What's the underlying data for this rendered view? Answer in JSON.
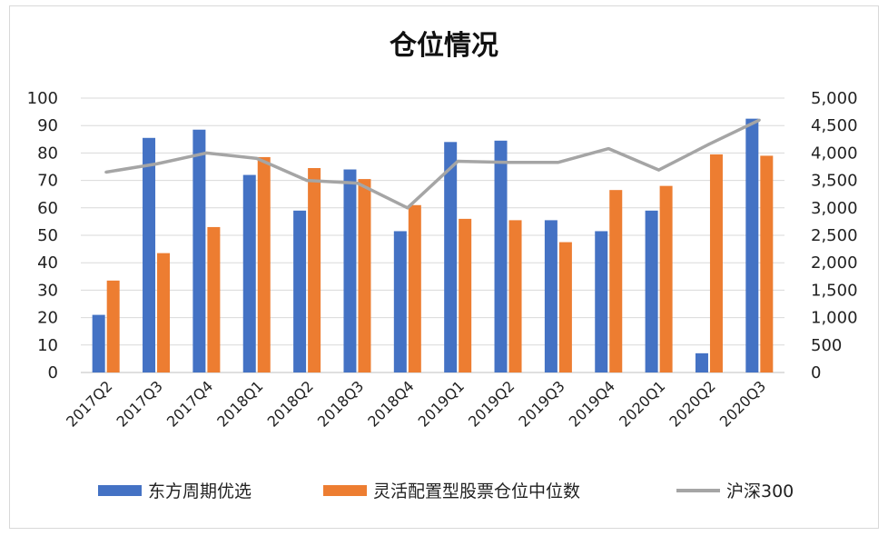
{
  "chart_data": {
    "type": "bar",
    "title": "仓位情况",
    "categories": [
      "2017Q2",
      "2017Q3",
      "2017Q4",
      "2018Q1",
      "2018Q2",
      "2018Q3",
      "2018Q4",
      "2019Q1",
      "2019Q2",
      "2019Q3",
      "2019Q4",
      "2020Q1",
      "2020Q2",
      "2020Q3"
    ],
    "series": [
      {
        "name": "东方周期优选",
        "kind": "bar",
        "axis": "left",
        "color": "#4472C4",
        "values": [
          21,
          85.5,
          88.5,
          72,
          59,
          74,
          51.5,
          84,
          84.5,
          55.5,
          51.5,
          59,
          7,
          92.5
        ]
      },
      {
        "name": "灵活配置型股票仓位中位数",
        "kind": "bar",
        "axis": "left",
        "color": "#ED7D31",
        "values": [
          33.5,
          43.5,
          53,
          78.5,
          74.5,
          70.5,
          61,
          56,
          55.5,
          47.5,
          66.5,
          68,
          79.5,
          79
        ]
      },
      {
        "name": "沪深300",
        "kind": "line",
        "axis": "right",
        "color": "#A5A5A5",
        "values": [
          3650,
          3800,
          4000,
          3900,
          3500,
          3450,
          3000,
          3850,
          3830,
          3830,
          4080,
          3690,
          4160,
          4600
        ]
      }
    ],
    "ylim_left": [
      0,
      100
    ],
    "ylim_right": [
      0,
      5000
    ],
    "left_ticks": [
      "0",
      "10",
      "20",
      "30",
      "40",
      "50",
      "60",
      "70",
      "80",
      "90",
      "100"
    ],
    "right_ticks": [
      "0",
      "500",
      "1,000",
      "1,500",
      "2,000",
      "2,500",
      "3,000",
      "3,500",
      "4,000",
      "4,500",
      "5,000"
    ],
    "grid": "horizontal",
    "legend_position": "bottom"
  }
}
